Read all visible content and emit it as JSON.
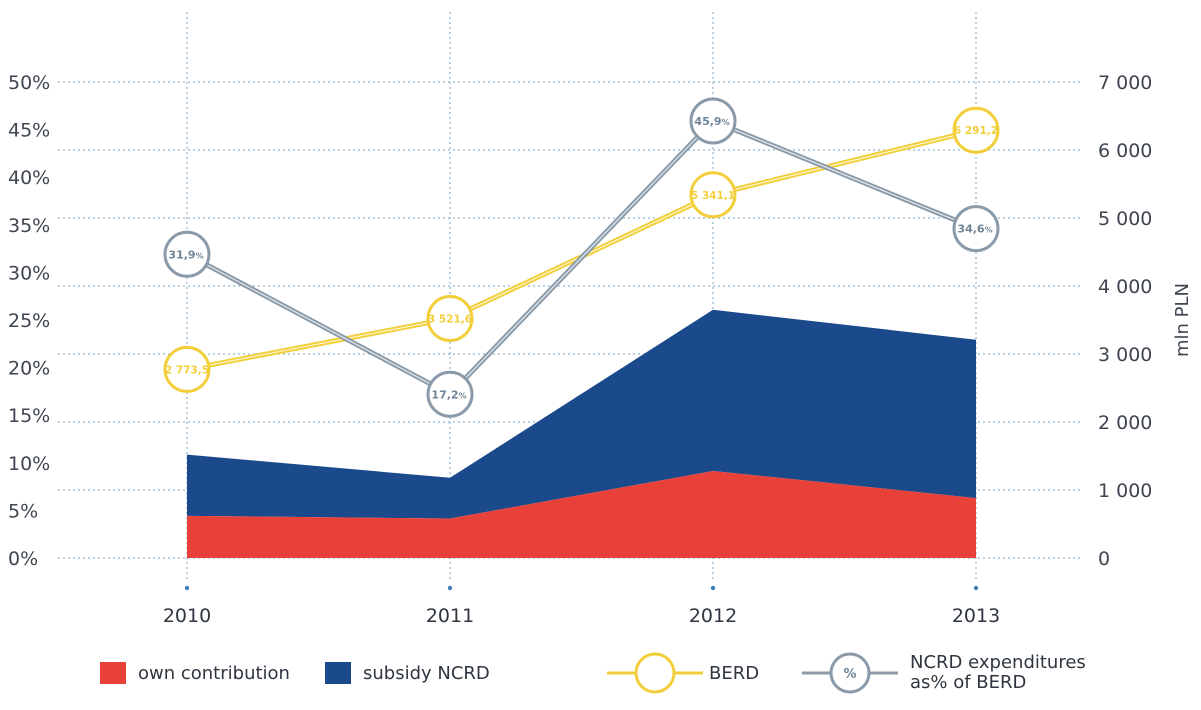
{
  "chart_data": {
    "type": "area+line",
    "categories": [
      "2010",
      "2011",
      "2012",
      "2013"
    ],
    "left_axis": {
      "ticks": [
        "0%",
        "5%",
        "10%",
        "15%",
        "20%",
        "25%",
        "30%",
        "35%",
        "40%",
        "45%",
        "50%"
      ],
      "ylim": [
        0,
        50
      ]
    },
    "right_axis": {
      "label": "mln PLN",
      "ticks": [
        "0",
        "1 000",
        "2 000",
        "3 000",
        "4 000",
        "5 000",
        "6 000",
        "7 000"
      ],
      "ylim": [
        0,
        7000
      ]
    },
    "series": [
      {
        "name": "own contribution",
        "kind": "area",
        "axis": "right",
        "color": "#e8413a",
        "values": [
          620,
          580,
          1280,
          880
        ]
      },
      {
        "name": "subsidy NCRD",
        "kind": "area",
        "axis": "right",
        "color": "#1a4a8b",
        "values": [
          900,
          600,
          2370,
          2330
        ]
      },
      {
        "name": "BERD",
        "kind": "line",
        "axis": "right",
        "color": "#f2cf3a",
        "values": [
          2773.5,
          3521.6,
          5341.1,
          6291.2
        ],
        "labels": [
          "2 773,5",
          "3 521,6",
          "5 341,1",
          "6 291,2"
        ]
      },
      {
        "name": "NCRD expenditures as% of BERD",
        "kind": "line",
        "axis": "left",
        "color": "#8a9aa9",
        "values": [
          31.9,
          17.2,
          45.9,
          34.6
        ],
        "labels": [
          "31,9",
          "17,2",
          "45,9",
          "34,6"
        ]
      }
    ],
    "grid": true
  },
  "legend": {
    "own": "own contribution",
    "subsidy": "subsidy NCRD",
    "berd": "BERD",
    "pct_symbol": "%",
    "pct_line1": "NCRD expenditures",
    "pct_line2": "as% of BERD"
  },
  "colors": {
    "own": "#e8413a",
    "subsidy": "#1a4a8b",
    "berd": "#f2cf3a",
    "pct": "#8a9aa9",
    "grid": "#8fb3cf"
  }
}
